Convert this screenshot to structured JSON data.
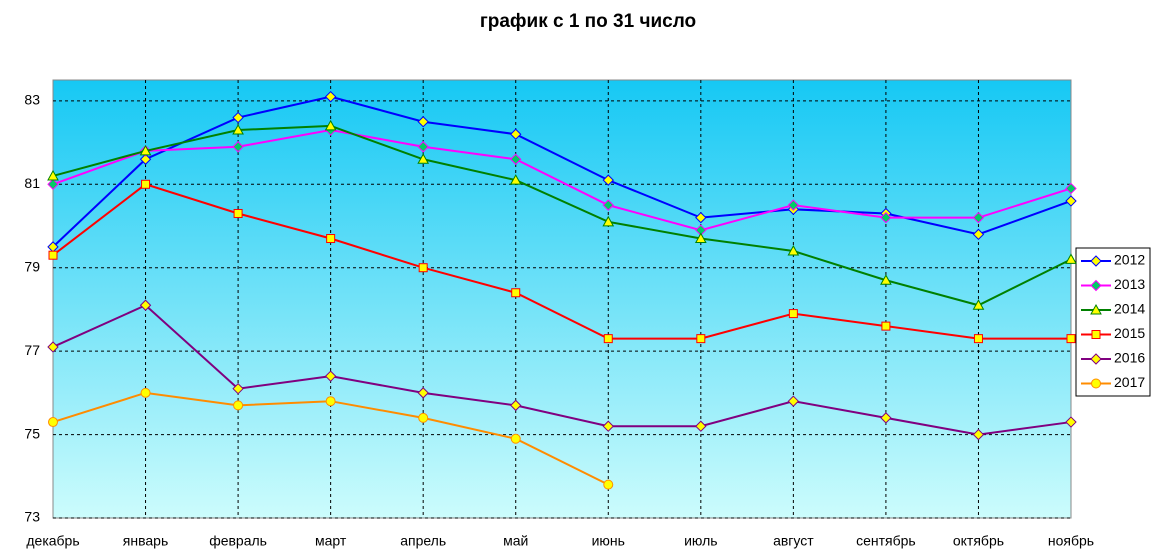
{
  "chart_data": {
    "type": "line",
    "title": "график с 1 по 31 число",
    "categories": [
      "декабрь",
      "январь",
      "февраль",
      "март",
      "апрель",
      "май",
      "июнь",
      "июль",
      "август",
      "сентябрь",
      "октябрь",
      "ноябрь"
    ],
    "ylim": [
      73,
      83.5
    ],
    "yticks": [
      73,
      75,
      77,
      79,
      81,
      83
    ],
    "grid": true,
    "legend": "right",
    "series": [
      {
        "name": "2012",
        "color": "#0000ff",
        "marker": "diamond",
        "marker_color": "#ffff00",
        "values": [
          79.5,
          81.6,
          82.6,
          83.1,
          82.5,
          82.2,
          81.1,
          80.2,
          80.4,
          80.3,
          79.8,
          80.6
        ]
      },
      {
        "name": "2013",
        "color": "#ff00ff",
        "marker": "diamond",
        "marker_color": "#00cc66",
        "values": [
          81.0,
          81.8,
          81.9,
          82.3,
          81.9,
          81.6,
          80.5,
          79.9,
          80.5,
          80.2,
          80.2,
          80.9
        ]
      },
      {
        "name": "2014",
        "color": "#008000",
        "marker": "triangle",
        "marker_color": "#ffff00",
        "values": [
          81.2,
          81.8,
          82.3,
          82.4,
          81.6,
          81.1,
          80.1,
          79.7,
          79.4,
          78.7,
          78.1,
          79.2
        ]
      },
      {
        "name": "2015",
        "color": "#ff0000",
        "marker": "square",
        "marker_color": "#ffff00",
        "values": [
          79.3,
          81.0,
          80.3,
          79.7,
          79.0,
          78.4,
          77.3,
          77.3,
          77.9,
          77.6,
          77.3,
          77.3
        ]
      },
      {
        "name": "2016",
        "color": "#800080",
        "marker": "diamond",
        "marker_color": "#ffff00",
        "values": [
          77.1,
          78.1,
          76.1,
          76.4,
          76.0,
          75.7,
          75.2,
          75.2,
          75.8,
          75.4,
          75.0,
          75.3
        ]
      },
      {
        "name": "2017",
        "color": "#ff8c00",
        "marker": "circle",
        "marker_color": "#ffff00",
        "values": [
          75.3,
          76.0,
          75.7,
          75.8,
          75.4,
          74.9,
          73.8,
          null,
          null,
          null,
          null,
          null
        ]
      }
    ]
  }
}
